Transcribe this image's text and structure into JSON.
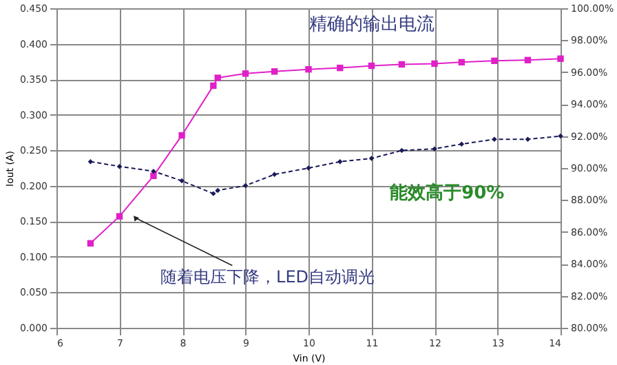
{
  "chart_data": {
    "type": "line",
    "xlabel": "Vin (V)",
    "ylabel": "Iout (A)",
    "xlim": [
      6,
      14
    ],
    "xticks": [
      6,
      7,
      8,
      9,
      10,
      11,
      12,
      13,
      14
    ],
    "ylim": [
      0,
      0.45
    ],
    "yticks": [
      {
        "value": 0,
        "label": "0.000"
      },
      {
        "value": 0.05,
        "label": "0.050"
      },
      {
        "value": 0.1,
        "label": "0.100"
      },
      {
        "value": 0.15,
        "label": "0.150"
      },
      {
        "value": 0.2,
        "label": "0.200"
      },
      {
        "value": 0.25,
        "label": "0.250"
      },
      {
        "value": 0.3,
        "label": "0.300"
      },
      {
        "value": 0.35,
        "label": "0.350"
      },
      {
        "value": 0.4,
        "label": "0.400"
      },
      {
        "value": 0.45,
        "label": "0.450"
      }
    ],
    "y2lim": [
      80,
      100
    ],
    "y2ticks": [
      {
        "value": 80,
        "label": "80.00%"
      },
      {
        "value": 82,
        "label": "82.00%"
      },
      {
        "value": 84,
        "label": "84.00%"
      },
      {
        "value": 86,
        "label": "86.00%"
      },
      {
        "value": 88,
        "label": "88.00%"
      },
      {
        "value": 90,
        "label": "90.00%"
      },
      {
        "value": 92,
        "label": "92.00%"
      },
      {
        "value": 94,
        "label": "94.00%"
      },
      {
        "value": 96,
        "label": "96.00%"
      },
      {
        "value": 98,
        "label": "98.00%"
      },
      {
        "value": 100,
        "label": "100.00%"
      }
    ],
    "grid": true,
    "series": [
      {
        "color": "#e020c8",
        "marker": "square",
        "line_style": "solid",
        "x": [
          6.54,
          7.0,
          7.54,
          7.99,
          8.49,
          8.56,
          9.0,
          9.46,
          10.0,
          10.5,
          11.0,
          11.48,
          12.0,
          12.43,
          12.95,
          13.48,
          14.0
        ],
        "values": [
          0.119,
          0.157,
          0.214,
          0.271,
          0.341,
          0.352,
          0.358,
          0.361,
          0.364,
          0.366,
          0.369,
          0.371,
          0.372,
          0.374,
          0.376,
          0.377,
          0.379
        ]
      },
      {
        "color": "#1a1a5a",
        "marker": "diamond",
        "line_style": "dashed",
        "axis": "y2",
        "x": [
          6.54,
          7.0,
          7.54,
          7.99,
          8.49,
          8.56,
          9.0,
          9.46,
          10.0,
          10.5,
          11.0,
          11.48,
          12.0,
          12.43,
          12.95,
          13.48,
          14.0
        ],
        "values": [
          90.4,
          90.1,
          89.8,
          89.2,
          88.4,
          88.6,
          88.9,
          89.6,
          90.0,
          90.4,
          90.6,
          91.1,
          91.2,
          91.5,
          91.8,
          91.8,
          92.0
        ]
      }
    ],
    "annotations": [
      "精确的输出电流",
      "能效高于90%",
      {
        "text": "随着电压下降，LED自动调光",
        "x": 7.25,
        "y": 0.155
      }
    ]
  }
}
